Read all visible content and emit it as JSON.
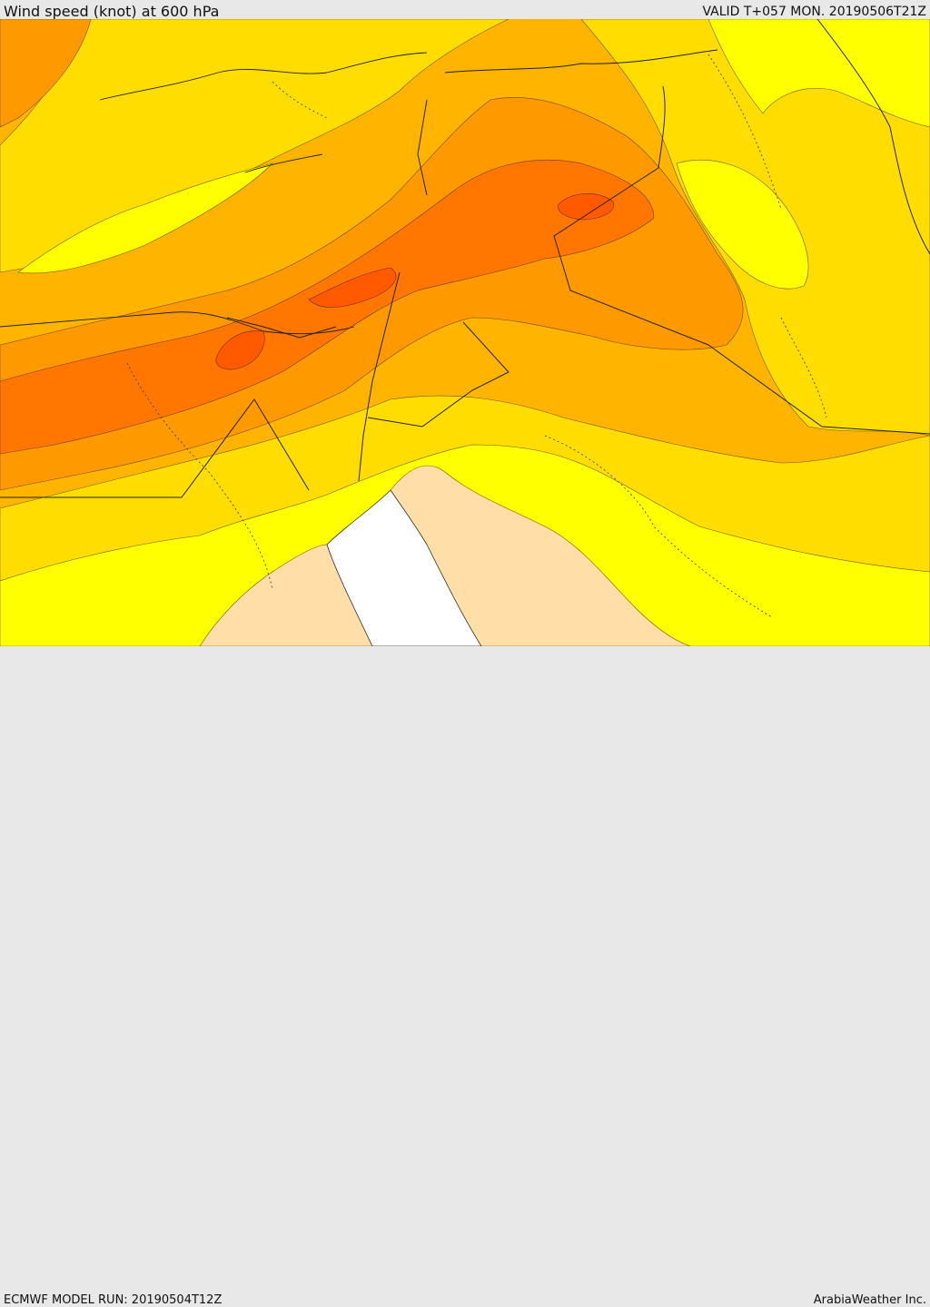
{
  "header": {
    "title": "Wind speed (knot) at 600 hPa",
    "valid_time": "VALID T+057 MON. 20190506T21Z"
  },
  "footer": {
    "model_run": "ECMWF MODEL RUN: 20190504T12Z",
    "credit": "ArabiaWeather Inc."
  },
  "palette": {
    "very_low": "#ffff00",
    "low": "#ffdd00",
    "moderate": "#ffb400",
    "high": "#ff9900",
    "very_high": "#ff7700",
    "extreme": "#ff5a00",
    "masked_land": "#ffdea8",
    "sea_mask": "#ffffff"
  }
}
